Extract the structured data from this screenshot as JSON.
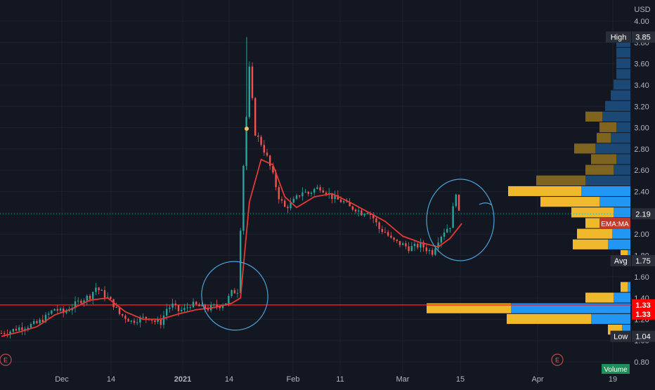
{
  "currency_label": "USD",
  "colors": {
    "background": "#131722",
    "grid": "#1e222d",
    "axis_text": "#b2b5be",
    "candle_up": "#26a69a",
    "candle_down": "#ef5350",
    "ema_line": "#e53935",
    "support_line": "#ff1a1a",
    "annotation_circle": "#4aa3d8",
    "profile_yellow": "#f0b82b",
    "profile_blue": "#2196f3",
    "profile_dark_yellow": "#8c6d1f",
    "profile_dark_blue": "#1e4e7e",
    "badge_default": "#2a2e39",
    "badge_red": "#ff0000",
    "badge_ema": "#c0392b",
    "volume_green": "#1e8f5a"
  },
  "chart_data": {
    "type": "candlestick",
    "y_range": [
      0.8,
      4.0
    ],
    "y_ticks": [
      "4.00",
      "3.80",
      "3.60",
      "3.40",
      "3.20",
      "3.00",
      "2.80",
      "2.60",
      "2.40",
      "2.20",
      "2.00",
      "1.80",
      "1.60",
      "1.40",
      "1.20",
      "1.00",
      "0.80"
    ],
    "x_ticks": [
      "Dec",
      "14",
      "2021",
      "14",
      "Feb",
      "11",
      "Mar",
      "15",
      "Apr",
      "19"
    ],
    "close_path": [
      [
        0,
        1.07
      ],
      [
        3,
        1.09
      ],
      [
        6,
        1.12
      ],
      [
        9,
        1.14
      ],
      [
        12,
        1.16
      ],
      [
        15,
        1.22
      ],
      [
        18,
        1.3
      ],
      [
        21,
        1.26
      ],
      [
        24,
        1.32
      ],
      [
        27,
        1.38
      ],
      [
        30,
        1.42
      ],
      [
        32,
        1.5
      ],
      [
        34,
        1.45
      ],
      [
        36,
        1.4
      ],
      [
        38,
        1.34
      ],
      [
        40,
        1.25
      ],
      [
        42,
        1.22
      ],
      [
        44,
        1.18
      ],
      [
        46,
        1.2
      ],
      [
        48,
        1.21
      ],
      [
        50,
        1.22
      ],
      [
        52,
        1.18
      ],
      [
        54,
        1.17
      ],
      [
        56,
        1.3
      ],
      [
        58,
        1.33
      ],
      [
        60,
        1.28
      ],
      [
        62,
        1.29
      ],
      [
        64,
        1.34
      ],
      [
        66,
        1.33
      ],
      [
        68,
        1.31
      ],
      [
        70,
        1.3
      ],
      [
        72,
        1.32
      ],
      [
        74,
        1.33
      ],
      [
        76,
        1.36
      ],
      [
        78,
        1.45
      ],
      [
        80,
        1.47
      ],
      [
        82,
        2.65
      ],
      [
        84,
        3.55
      ],
      [
        86,
        2.95
      ],
      [
        88,
        2.85
      ],
      [
        90,
        2.72
      ],
      [
        92,
        2.55
      ],
      [
        94,
        2.35
      ],
      [
        96,
        2.25
      ],
      [
        98,
        2.28
      ],
      [
        100,
        2.34
      ],
      [
        102,
        2.4
      ],
      [
        104,
        2.38
      ],
      [
        106,
        2.42
      ],
      [
        108,
        2.44
      ],
      [
        110,
        2.4
      ],
      [
        112,
        2.35
      ],
      [
        114,
        2.32
      ],
      [
        116,
        2.3
      ],
      [
        118,
        2.25
      ],
      [
        120,
        2.24
      ],
      [
        122,
        2.2
      ],
      [
        124,
        2.22
      ],
      [
        126,
        2.15
      ],
      [
        128,
        2.05
      ],
      [
        130,
        2.02
      ],
      [
        132,
        1.95
      ],
      [
        134,
        1.92
      ],
      [
        136,
        1.9
      ],
      [
        138,
        1.87
      ],
      [
        140,
        1.88
      ],
      [
        142,
        1.9
      ],
      [
        144,
        1.86
      ],
      [
        146,
        1.83
      ],
      [
        148,
        1.95
      ],
      [
        150,
        2.03
      ],
      [
        152,
        2.08
      ],
      [
        154,
        2.4
      ],
      [
        155,
        2.19
      ]
    ],
    "ema_path": [
      [
        0,
        1.04
      ],
      [
        6,
        1.08
      ],
      [
        12,
        1.13
      ],
      [
        18,
        1.24
      ],
      [
        24,
        1.3
      ],
      [
        30,
        1.38
      ],
      [
        36,
        1.4
      ],
      [
        42,
        1.27
      ],
      [
        48,
        1.2
      ],
      [
        54,
        1.2
      ],
      [
        60,
        1.25
      ],
      [
        66,
        1.29
      ],
      [
        72,
        1.31
      ],
      [
        78,
        1.35
      ],
      [
        81,
        1.4
      ],
      [
        84,
        2.3
      ],
      [
        88,
        2.7
      ],
      [
        92,
        2.65
      ],
      [
        96,
        2.35
      ],
      [
        100,
        2.25
      ],
      [
        106,
        2.35
      ],
      [
        112,
        2.38
      ],
      [
        118,
        2.3
      ],
      [
        124,
        2.21
      ],
      [
        130,
        2.12
      ],
      [
        136,
        1.98
      ],
      [
        142,
        1.92
      ],
      [
        148,
        1.88
      ],
      [
        152,
        1.96
      ],
      [
        156,
        2.1
      ]
    ],
    "volume_profile": [
      {
        "price": 3.8,
        "up": 0.0,
        "down": 0.1
      },
      {
        "price": 3.7,
        "up": 0.0,
        "down": 0.1
      },
      {
        "price": 3.6,
        "up": 0.0,
        "down": 0.1
      },
      {
        "price": 3.5,
        "up": 0.0,
        "down": 0.1
      },
      {
        "price": 3.4,
        "up": 0.0,
        "down": 0.12
      },
      {
        "price": 3.3,
        "up": 0.0,
        "down": 0.14
      },
      {
        "price": 3.2,
        "up": 0.0,
        "down": 0.18
      },
      {
        "price": 3.1,
        "up": 0.12,
        "down": 0.2
      },
      {
        "price": 3.0,
        "up": 0.12,
        "down": 0.1
      },
      {
        "price": 2.9,
        "up": 0.1,
        "down": 0.14
      },
      {
        "price": 2.8,
        "up": 0.15,
        "down": 0.25
      },
      {
        "price": 2.7,
        "up": 0.18,
        "down": 0.1
      },
      {
        "price": 2.6,
        "up": 0.2,
        "down": 0.12
      },
      {
        "price": 2.5,
        "up": 0.35,
        "down": 0.32
      },
      {
        "price": 2.4,
        "up": 0.52,
        "down": 0.35
      },
      {
        "price": 2.3,
        "up": 0.42,
        "down": 0.22
      },
      {
        "price": 2.2,
        "up": 0.3,
        "down": 0.12
      },
      {
        "price": 2.1,
        "up": 0.2,
        "down": 0.12
      },
      {
        "price": 2.0,
        "up": 0.25,
        "down": 0.13
      },
      {
        "price": 1.9,
        "up": 0.25,
        "down": 0.16
      },
      {
        "price": 1.8,
        "up": 0.05,
        "down": 0.02
      },
      {
        "price": 1.5,
        "up": 0.05,
        "down": 0.02
      },
      {
        "price": 1.4,
        "up": 0.2,
        "down": 0.12
      },
      {
        "price": 1.3,
        "up": 0.6,
        "down": 0.85
      },
      {
        "price": 1.2,
        "up": 0.6,
        "down": 0.28
      },
      {
        "price": 1.1,
        "up": 0.1,
        "down": 0.06
      }
    ],
    "price_badges": [
      {
        "label": "High",
        "value": "3.85",
        "price": 3.85,
        "style": "default"
      },
      {
        "label": "",
        "value": "2.19",
        "price": 2.19,
        "style": "default"
      },
      {
        "label": "EMA:MA",
        "value": "",
        "price": 2.1,
        "style": "ema"
      },
      {
        "label": "Avg",
        "value": "1.75",
        "price": 1.75,
        "style": "default"
      },
      {
        "label": "",
        "value": "1.33",
        "price": 1.335,
        "style": "red"
      },
      {
        "label": "",
        "value": "1.33",
        "price": 1.25,
        "style": "red"
      },
      {
        "label": "Low",
        "value": "1.04",
        "price": 1.04,
        "style": "default"
      }
    ],
    "support_level": 1.335,
    "current_price": 2.19,
    "volume_label": "Volume"
  }
}
